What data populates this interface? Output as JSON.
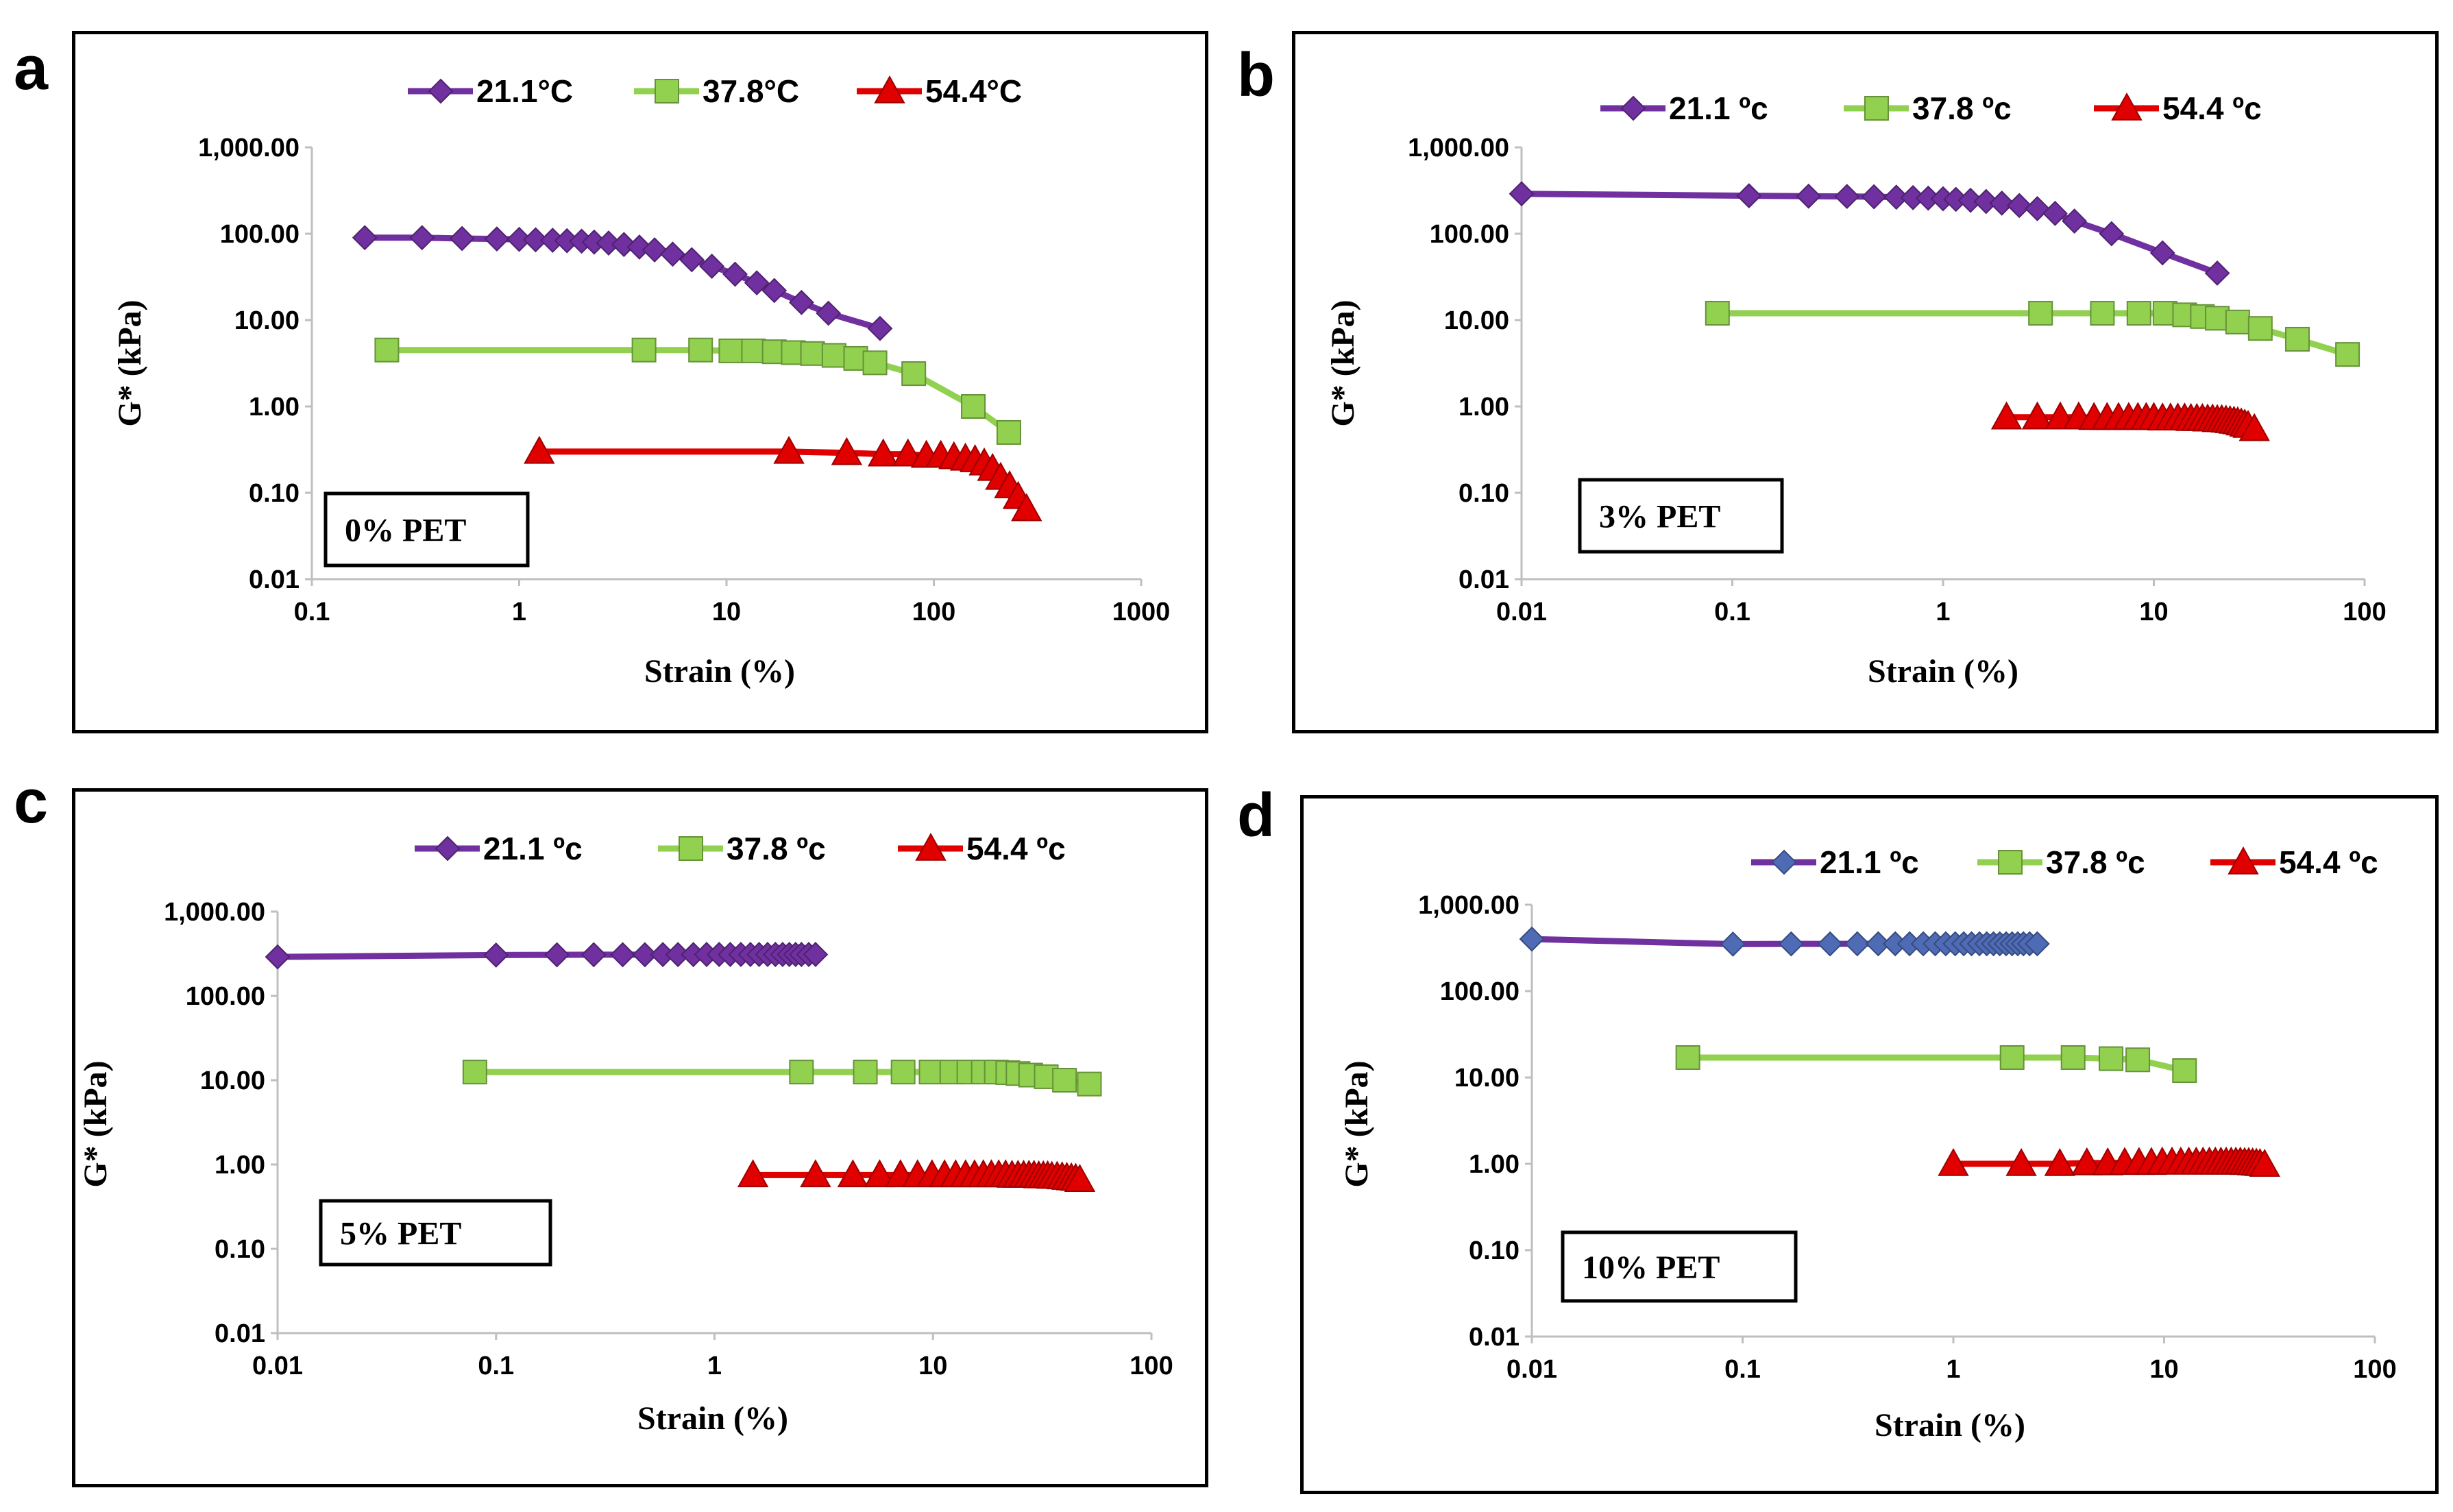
{
  "series_colors": {
    "s21": "#7030A0",
    "s37": "#92D050",
    "s54": "#E00000",
    "s21_marker_d": "#4F6BB5"
  },
  "chart_data": [
    {
      "panel": "a",
      "type": "line",
      "xscale": "log",
      "yscale": "log",
      "xlabel": "Strain (%)",
      "ylabel": "G* (kPa)",
      "xlim": [
        0.1,
        1000
      ],
      "ylim": [
        0.01,
        1000
      ],
      "xticks": [
        "0.1",
        "1",
        "10",
        "100",
        "1000"
      ],
      "yticks": [
        "0.01",
        "0.10",
        "1.00",
        "10.00",
        "100.00",
        "1,000.00"
      ],
      "annotation": "0% PET",
      "series": [
        {
          "name": "21.1°C",
          "marker": "diamond",
          "x": [
            0.18,
            0.34,
            0.53,
            0.78,
            1.0,
            1.2,
            1.45,
            1.7,
            2.0,
            2.3,
            2.7,
            3.2,
            3.8,
            4.5,
            5.5,
            6.8,
            8.5,
            11,
            14,
            17,
            23,
            31,
            55
          ],
          "y": [
            90,
            90,
            88,
            87,
            86,
            85,
            84,
            83,
            82,
            80,
            78,
            75,
            70,
            65,
            58,
            50,
            42,
            34,
            27,
            22,
            16,
            12,
            8
          ]
        },
        {
          "name": "37.8°C",
          "marker": "square",
          "x": [
            0.23,
            4,
            7.5,
            10.5,
            13.5,
            17,
            21,
            26,
            33,
            42,
            52,
            80,
            155,
            230
          ],
          "y": [
            4.5,
            4.5,
            4.5,
            4.4,
            4.4,
            4.3,
            4.2,
            4.1,
            3.9,
            3.6,
            3.2,
            2.4,
            1.0,
            0.5
          ]
        },
        {
          "name": "54.4°C",
          "marker": "triangle",
          "x": [
            1.25,
            20,
            38,
            57,
            75,
            92,
            108,
            125,
            142,
            158,
            175,
            192,
            210,
            232,
            255,
            280
          ],
          "y": [
            0.3,
            0.3,
            0.29,
            0.28,
            0.28,
            0.27,
            0.27,
            0.26,
            0.25,
            0.24,
            0.22,
            0.19,
            0.15,
            0.12,
            0.09,
            0.065
          ]
        }
      ]
    },
    {
      "panel": "b",
      "type": "line",
      "xscale": "log",
      "yscale": "log",
      "xlabel": "Strain (%)",
      "ylabel": "G* (kPa)",
      "xlim": [
        0.01,
        100
      ],
      "ylim": [
        0.01,
        1000
      ],
      "xticks": [
        "0.01",
        "0.1",
        "1",
        "10",
        "100"
      ],
      "yticks": [
        "0.01",
        "0.10",
        "1.00",
        "10.00",
        "100.00",
        "1,000.00"
      ],
      "annotation": "3% PET",
      "series": [
        {
          "name": "21.1 ºc",
          "marker": "diamond",
          "x": [
            0.01,
            0.12,
            0.23,
            0.35,
            0.47,
            0.6,
            0.72,
            0.85,
            1.0,
            1.15,
            1.35,
            1.6,
            1.9,
            2.3,
            2.8,
            3.4,
            4.2,
            6.3,
            11,
            20
          ],
          "y": [
            290,
            275,
            272,
            270,
            268,
            265,
            262,
            258,
            254,
            250,
            244,
            236,
            226,
            212,
            195,
            172,
            140,
            100,
            60,
            35
          ]
        },
        {
          "name": "37.8 ºc",
          "marker": "square",
          "x": [
            0.085,
            2.9,
            5.7,
            8.5,
            11.3,
            14,
            17,
            20,
            25,
            32,
            48,
            83
          ],
          "y": [
            12,
            12,
            12,
            12,
            12,
            11.5,
            11,
            10.5,
            9.5,
            8,
            6,
            4
          ]
        },
        {
          "name": "54.4 ºc",
          "marker": "triangle",
          "x": [
            2.0,
            2.8,
            3.6,
            4.4,
            5.2,
            6.0,
            6.8,
            7.6,
            8.4,
            9.2,
            10,
            11,
            12,
            13,
            14,
            15,
            16,
            17,
            18,
            19,
            20,
            21,
            22,
            23,
            24,
            25,
            26,
            27,
            28,
            30
          ],
          "y": [
            0.75,
            0.75,
            0.75,
            0.75,
            0.74,
            0.74,
            0.74,
            0.74,
            0.74,
            0.74,
            0.74,
            0.73,
            0.73,
            0.73,
            0.73,
            0.72,
            0.72,
            0.72,
            0.71,
            0.71,
            0.7,
            0.7,
            0.69,
            0.68,
            0.67,
            0.66,
            0.64,
            0.62,
            0.6,
            0.55
          ]
        }
      ]
    },
    {
      "panel": "c",
      "type": "line",
      "xscale": "log",
      "yscale": "log",
      "xlabel": "Strain (%)",
      "ylabel": "G* (kPa)",
      "xlim": [
        0.01,
        100
      ],
      "ylim": [
        0.01,
        1000
      ],
      "xticks": [
        "0.01",
        "0.1",
        "1",
        "10",
        "100"
      ],
      "yticks": [
        "0.01",
        "0.10",
        "1.00",
        "10.00",
        "100.00",
        "1,000.00"
      ],
      "annotation": "5% PET",
      "series": [
        {
          "name": "21.1 ºc",
          "marker": "diamond",
          "x": [
            0.01,
            0.1,
            0.19,
            0.28,
            0.38,
            0.48,
            0.58,
            0.68,
            0.8,
            0.92,
            1.05,
            1.18,
            1.32,
            1.46,
            1.6,
            1.75,
            1.9,
            2.05,
            2.2,
            2.35,
            2.5,
            2.7,
            2.9
          ],
          "y": [
            290,
            305,
            307,
            308,
            308,
            308,
            309,
            309,
            309,
            310,
            310,
            310,
            310,
            310,
            310,
            310,
            310,
            310,
            310,
            310,
            310,
            310,
            310
          ]
        },
        {
          "name": "37.8 ºc",
          "marker": "square",
          "x": [
            0.08,
            2.5,
            4.9,
            7.3,
            9.8,
            12.2,
            14.6,
            17,
            19.5,
            22,
            24.5,
            28,
            33,
            40,
            52
          ],
          "y": [
            12.5,
            12.5,
            12.5,
            12.5,
            12.5,
            12.5,
            12.5,
            12.5,
            12.5,
            12.3,
            12,
            11.5,
            11,
            10,
            9
          ]
        },
        {
          "name": "54.4 ºc",
          "marker": "triangle",
          "x": [
            1.5,
            2.9,
            4.3,
            5.7,
            7.1,
            8.5,
            9.9,
            11.3,
            12.7,
            14.1,
            15.5,
            17,
            18.5,
            20,
            21.5,
            23,
            24.5,
            26,
            27.5,
            29,
            30.5,
            32,
            33.5,
            35,
            37,
            39,
            41,
            43,
            45,
            47
          ],
          "y": [
            0.75,
            0.75,
            0.75,
            0.75,
            0.75,
            0.75,
            0.75,
            0.75,
            0.75,
            0.75,
            0.75,
            0.75,
            0.75,
            0.75,
            0.75,
            0.74,
            0.74,
            0.74,
            0.74,
            0.74,
            0.73,
            0.73,
            0.73,
            0.72,
            0.72,
            0.71,
            0.7,
            0.69,
            0.68,
            0.66
          ]
        }
      ]
    },
    {
      "panel": "d",
      "type": "line",
      "xscale": "log",
      "yscale": "log",
      "xlabel": "Strain (%)",
      "ylabel": "G* (kPa)",
      "xlim": [
        0.01,
        100
      ],
      "ylim": [
        0.01,
        1000
      ],
      "xticks": [
        "0.01",
        "0.1",
        "1",
        "10",
        "100"
      ],
      "yticks": [
        "0.01",
        "0.10",
        "1.00",
        "10.00",
        "100.00",
        "1,000.00"
      ],
      "annotation": "10% PET",
      "series": [
        {
          "name": "21.1 ºc",
          "marker": "diamond",
          "x": [
            0.01,
            0.09,
            0.17,
            0.26,
            0.35,
            0.44,
            0.53,
            0.62,
            0.72,
            0.82,
            0.92,
            1.02,
            1.12,
            1.22,
            1.33,
            1.44,
            1.55,
            1.66,
            1.78,
            1.9,
            2.02,
            2.15,
            2.3,
            2.5
          ],
          "y": [
            400,
            350,
            352,
            352,
            353,
            353,
            353,
            353,
            353,
            353,
            353,
            353,
            353,
            353,
            353,
            353,
            353,
            353,
            353,
            353,
            353,
            353,
            353,
            353
          ]
        },
        {
          "name": "37.8 ºc",
          "marker": "square",
          "x": [
            0.055,
            1.9,
            3.7,
            5.6,
            7.5,
            12.5
          ],
          "y": [
            17,
            17,
            17,
            16.5,
            16,
            12
          ]
        },
        {
          "name": "54.4 ºc",
          "marker": "triangle",
          "x": [
            1.0,
            2.1,
            3.2,
            4.3,
            5.4,
            6.5,
            7.6,
            8.7,
            9.8,
            10.9,
            12,
            13.1,
            14.2,
            15.3,
            16.4,
            17.5,
            18.6,
            19.7,
            20.8,
            21.9,
            23,
            24.1,
            25.2,
            26.3,
            27.4,
            28.5,
            30
          ],
          "y": [
            1.0,
            1.0,
            1.0,
            1.02,
            1.02,
            1.03,
            1.03,
            1.03,
            1.04,
            1.04,
            1.04,
            1.04,
            1.04,
            1.04,
            1.04,
            1.04,
            1.04,
            1.04,
            1.04,
            1.04,
            1.04,
            1.03,
            1.03,
            1.02,
            1.01,
            1.0,
            0.98
          ]
        }
      ]
    }
  ]
}
